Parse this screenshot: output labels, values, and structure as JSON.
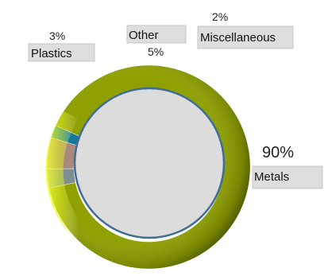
{
  "chart_data": {
    "type": "pie",
    "style": "doughnut",
    "categories": [
      "Metals",
      "Plastics",
      "Other",
      "Miscellaneous"
    ],
    "values": [
      90,
      3,
      5,
      2
    ],
    "value_labels": [
      "90%",
      "3%",
      "5%",
      "2%"
    ],
    "colors": [
      "#8fa000",
      "#7f8f8f",
      "#a88a7c",
      "#127a9c"
    ],
    "legend": "none"
  }
}
